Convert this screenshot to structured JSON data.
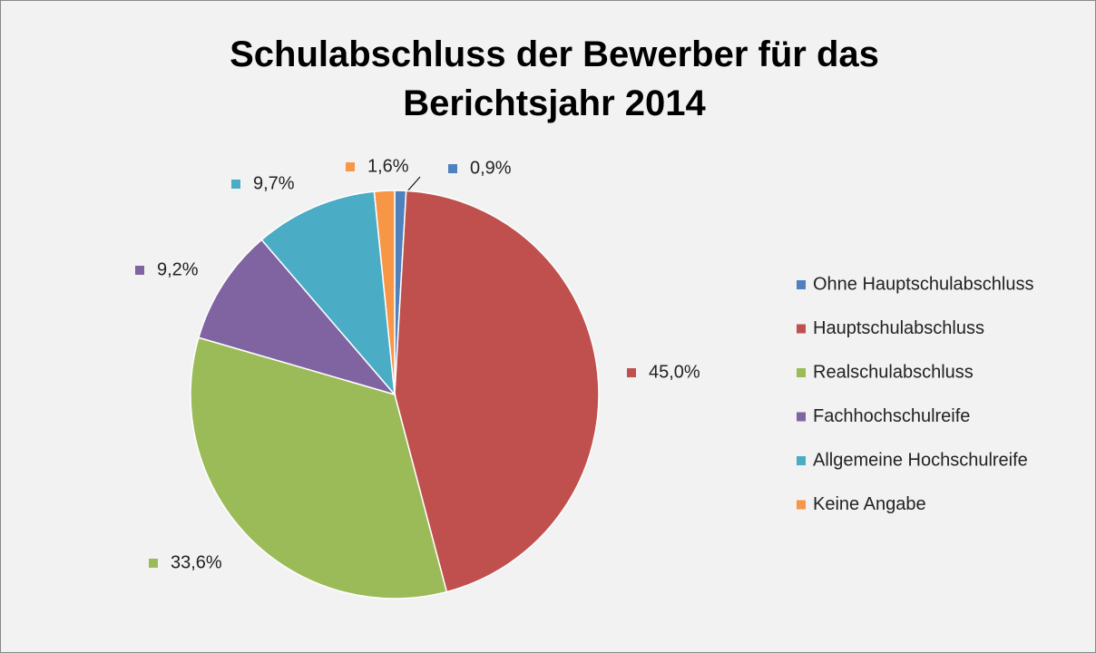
{
  "chart_data": {
    "type": "pie",
    "title": "Schulabschluss der Bewerber für das Berichtsjahr 2014",
    "categories": [
      "Ohne Hauptschulabschluss",
      "Hauptschulabschluss",
      "Realschulabschluss",
      "Fachhochschulreife",
      "Allgemeine Hochschulreife",
      "Keine Angabe"
    ],
    "values": [
      0.9,
      45.0,
      33.6,
      9.2,
      9.7,
      1.6
    ],
    "value_labels": [
      "0,9%",
      "45,0%",
      "33,6%",
      "9,2%",
      "9,7%",
      "1,6%"
    ],
    "colors": [
      "#4f81bd",
      "#c0504d",
      "#9bbb59",
      "#8064a2",
      "#4bacc6",
      "#f79646"
    ],
    "legend": "right"
  }
}
